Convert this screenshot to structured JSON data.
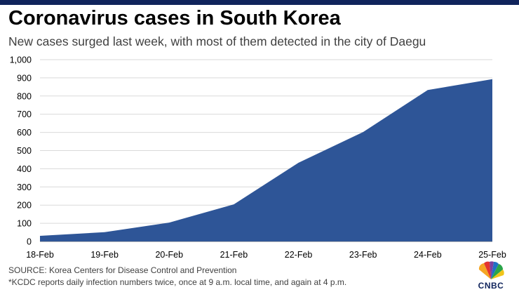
{
  "header": {
    "title": "Coronavirus cases in South Korea",
    "subtitle": "New cases surged last week, with most of them detected in the city of Daegu"
  },
  "footer": {
    "source": "SOURCE: Korea Centers for Disease Control and Prevention",
    "note": "*KCDC reports daily infection numbers twice, once at 9 a.m. local time, and again at 4 p.m.",
    "logo_text": "CNBC"
  },
  "chart_data": {
    "type": "area",
    "title": "Coronavirus cases in South Korea",
    "xlabel": "",
    "ylabel": "",
    "categories": [
      "18-Feb",
      "19-Feb",
      "20-Feb",
      "21-Feb",
      "22-Feb",
      "23-Feb",
      "24-Feb",
      "25-Feb"
    ],
    "series": [
      {
        "name": "Cases",
        "values": [
          31,
          51,
          104,
          204,
          433,
          602,
          833,
          893
        ]
      }
    ],
    "ylim": [
      0,
      1000
    ],
    "yticks": [
      0,
      100,
      200,
      300,
      400,
      500,
      600,
      700,
      800,
      900,
      1000
    ],
    "ytick_labels": [
      "0",
      "100",
      "200",
      "300",
      "400",
      "500",
      "600",
      "700",
      "800",
      "900",
      "1,000"
    ],
    "grid": true,
    "colors": {
      "fill": "#2e5597",
      "grid": "#d9d9d9",
      "axis": "#bfbfbf"
    }
  }
}
